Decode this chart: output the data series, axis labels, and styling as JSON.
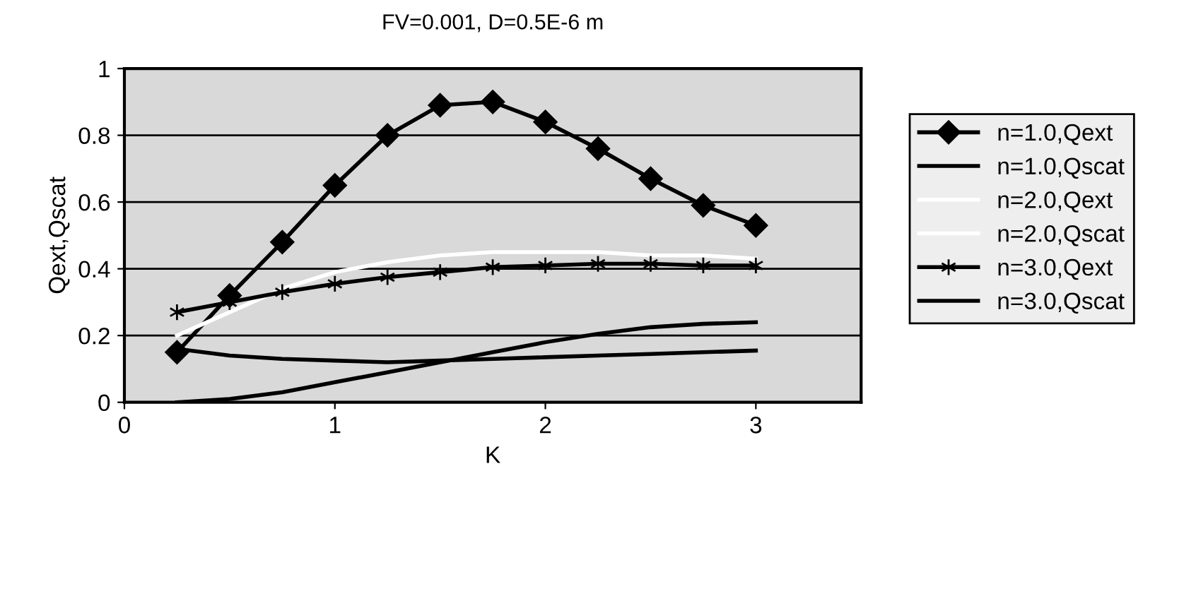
{
  "chart_data": {
    "type": "line",
    "title": "FV=0.001, D=0.5E-6 m",
    "xlabel": "K",
    "ylabel": "Qext,Qscat",
    "x": [
      0.25,
      0.5,
      0.75,
      1.0,
      1.25,
      1.5,
      1.75,
      2.0,
      2.25,
      2.5,
      2.75,
      3.0
    ],
    "series": [
      {
        "name": "n=1.0,Qext",
        "color": "#000000",
        "marker": "diamond",
        "values": [
          0.15,
          0.32,
          0.48,
          0.65,
          0.8,
          0.89,
          0.9,
          0.84,
          0.76,
          0.67,
          0.59,
          0.53
        ]
      },
      {
        "name": "n=1.0,Qscat",
        "color": "#000000",
        "marker": "none",
        "values": [
          0.16,
          0.14,
          0.13,
          0.125,
          0.12,
          0.125,
          0.13,
          0.135,
          0.14,
          0.145,
          0.15,
          0.155
        ]
      },
      {
        "name": "n=2.0,Qext",
        "color": "#ffffff",
        "marker": "none",
        "values": [
          0.2,
          0.27,
          0.34,
          0.39,
          0.42,
          0.44,
          0.45,
          0.45,
          0.45,
          0.44,
          0.44,
          0.43
        ]
      },
      {
        "name": "n=2.0,Qscat",
        "color": "#ffffff",
        "marker": "none",
        "values": [
          null,
          null,
          null,
          null,
          null,
          null,
          null,
          null,
          null,
          null,
          null,
          null
        ]
      },
      {
        "name": "n=3.0,Qext",
        "color": "#000000",
        "marker": "cross",
        "values": [
          0.27,
          0.3,
          0.33,
          0.355,
          0.375,
          0.39,
          0.405,
          0.41,
          0.415,
          0.415,
          0.41,
          0.41
        ]
      },
      {
        "name": "n=3.0,Qscat",
        "color": "#000000",
        "marker": "none",
        "values": [
          0.0,
          0.01,
          0.03,
          0.06,
          0.09,
          0.12,
          0.15,
          0.18,
          0.205,
          0.225,
          0.235,
          0.24
        ]
      }
    ],
    "xlim": [
      0,
      3.5
    ],
    "xticks": [
      0,
      1,
      2,
      3
    ],
    "ylim": [
      0,
      1
    ],
    "yticks": [
      0,
      0.2,
      0.4,
      0.6,
      0.8,
      1
    ],
    "grid": "y",
    "legend": "right"
  }
}
